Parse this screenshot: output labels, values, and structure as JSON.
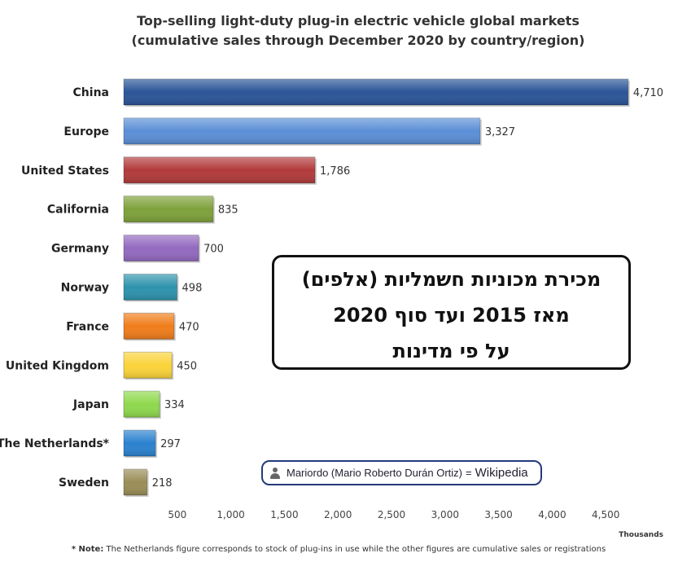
{
  "chart_data": {
    "type": "bar",
    "orientation": "horizontal",
    "title_line1": "Top-selling light-duty plug-in electric vehicle global markets",
    "title_line2": "(cumulative sales through December 2020 by country/region)",
    "categories": [
      "China",
      "Europe",
      "United States",
      "California",
      "Germany",
      "Norway",
      "France",
      "United Kingdom",
      "Japan",
      "The Netherlands*",
      "Sweden"
    ],
    "values": [
      4710,
      3327,
      1786,
      835,
      700,
      498,
      470,
      450,
      334,
      297,
      218
    ],
    "value_labels": [
      "4,710",
      "3,327",
      "1,786",
      "835",
      "700",
      "498",
      "470",
      "450",
      "334",
      "297",
      "218"
    ],
    "colors": [
      "#2b5597",
      "#5b8fd6",
      "#b23b3b",
      "#7ea23a",
      "#9269c0",
      "#2e93ad",
      "#f07d1b",
      "#fbd33a",
      "#8fd94d",
      "#2b82d0",
      "#9a8d57"
    ],
    "xticks": [
      500,
      1000,
      1500,
      2000,
      2500,
      3000,
      3500,
      4000,
      4500
    ],
    "xtick_labels": [
      "500",
      "1,000",
      "1,500",
      "2,000",
      "2,500",
      "3,000",
      "3,500",
      "4,000",
      "4,500"
    ],
    "xlim": [
      0,
      4750
    ],
    "unit_label": "Thousands",
    "grid": false,
    "legend": "none"
  },
  "footnote_bold": "* Note:",
  "footnote_text": " The Netherlands figure corresponds to stock of plug-ins in use while the other figures are cumulative sales or registrations",
  "overlay": {
    "line1": "מכירת מכוניות חשמליות (אלפים)",
    "line2": "מאז 2015 ועד סוף 2020",
    "line3": "על פי מדינות"
  },
  "credit": {
    "author": "Mariordo (Mario Roberto Durán Ortiz)",
    "equals": "=",
    "source": "Wikipedia",
    "icon": "user-icon"
  }
}
